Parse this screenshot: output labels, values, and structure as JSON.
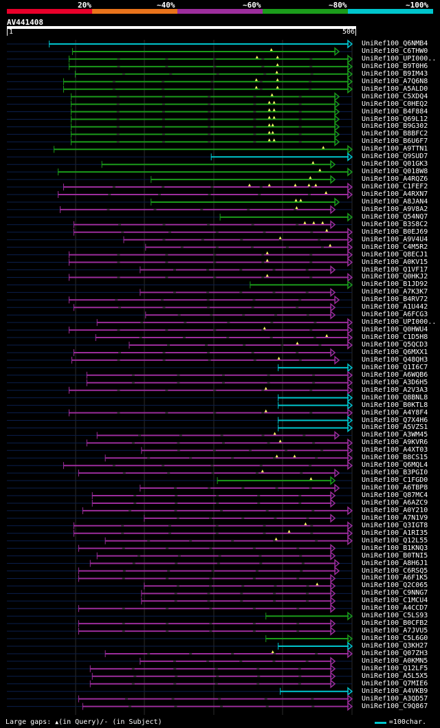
{
  "legend": {
    "labels": [
      "20%",
      "~40%",
      "~60%",
      "~80%",
      "~100%"
    ],
    "colors": [
      "#e8002a",
      "#e8731b",
      "#9c2d9c",
      "#1b9c1b",
      "#00c5cd"
    ]
  },
  "title": "AV441408",
  "ruler": {
    "start": "1",
    "end": "506"
  },
  "query_length": 506,
  "hits": [
    {
      "id": "UniRef100_Q6NMB4",
      "q": [
        63,
        506
      ],
      "c": "cyan",
      "s": 0,
      "t": []
    },
    {
      "id": "UniRef100_C6THW0",
      "q": [
        97,
        487
      ],
      "c": "green",
      "s": 0,
      "t": [
        388
      ]
    },
    {
      "id": "UniRef100_UPI000..",
      "q": [
        92,
        506
      ],
      "c": "green",
      "s": 1,
      "t": [
        367,
        397
      ]
    },
    {
      "id": "UniRef100_B9T0H6",
      "q": [
        92,
        506
      ],
      "c": "green",
      "s": 1,
      "t": [
        397
      ]
    },
    {
      "id": "UniRef100_B9IM43",
      "q": [
        101,
        506
      ],
      "c": "green",
      "s": 1,
      "t": [
        396
      ]
    },
    {
      "id": "UniRef100_A7Q6N8",
      "q": [
        84,
        506
      ],
      "c": "green",
      "s": 1,
      "t": [
        366,
        397
      ]
    },
    {
      "id": "UniRef100_A5ALD0",
      "q": [
        84,
        506
      ],
      "c": "green",
      "s": 1,
      "t": [
        366,
        397
      ]
    },
    {
      "id": "UniRef100_C5XDQ4",
      "q": [
        95,
        487
      ],
      "c": "green",
      "s": 1,
      "t": [
        389
      ]
    },
    {
      "id": "UniRef100_C0HEQ2",
      "q": [
        95,
        487
      ],
      "c": "green",
      "s": 1,
      "t": [
        385,
        392
      ]
    },
    {
      "id": "UniRef100_B4F884",
      "q": [
        95,
        487
      ],
      "c": "green",
      "s": 1,
      "t": [
        385,
        392
      ]
    },
    {
      "id": "UniRef100_Q69L12",
      "q": [
        95,
        487
      ],
      "c": "green",
      "s": 1,
      "t": [
        385,
        392
      ]
    },
    {
      "id": "UniRef100_B9G302",
      "q": [
        95,
        487
      ],
      "c": "green",
      "s": 1,
      "t": [
        385,
        390
      ]
    },
    {
      "id": "UniRef100_B8BFC2",
      "q": [
        95,
        487
      ],
      "c": "green",
      "s": 1,
      "t": [
        385,
        390
      ]
    },
    {
      "id": "UniRef100_B6U6F7",
      "q": [
        95,
        487
      ],
      "c": "green",
      "s": 1,
      "t": [
        385,
        392
      ]
    },
    {
      "id": "UniRef100_A9TTN1",
      "q": [
        70,
        506
      ],
      "c": "green",
      "s": 0,
      "t": [
        464
      ]
    },
    {
      "id": "UniRef100_Q9SUD7",
      "q": [
        300,
        506
      ],
      "c": "cyan",
      "s": 0,
      "t": []
    },
    {
      "id": "UniRef100_Q01GK3",
      "q": [
        140,
        481
      ],
      "c": "green",
      "s": 0,
      "t": [
        449
      ]
    },
    {
      "id": "UniRef100_Q018W8",
      "q": [
        76,
        506
      ],
      "c": "green",
      "s": 0,
      "t": [
        459
      ]
    },
    {
      "id": "UniRef100_A4RQZ6",
      "q": [
        212,
        481
      ],
      "c": "green",
      "s": 0,
      "t": [
        445
      ]
    },
    {
      "id": "UniRef100_C1FEF2",
      "q": [
        84,
        506
      ],
      "c": "purple",
      "s": 1,
      "t": [
        356,
        385,
        423,
        443,
        453
      ]
    },
    {
      "id": "UniRef100_A4RXN7",
      "q": [
        76,
        506
      ],
      "c": "purple",
      "s": 1,
      "t": [
        468
      ]
    },
    {
      "id": "UniRef100_A8JAN4",
      "q": [
        212,
        487
      ],
      "c": "green",
      "s": 0,
      "t": [
        424,
        431
      ]
    },
    {
      "id": "UniRef100_A9V8A2",
      "q": [
        79,
        481
      ],
      "c": "purple",
      "s": 1,
      "t": [
        425
      ]
    },
    {
      "id": "UniRef100_Q54NQ7",
      "q": [
        313,
        506
      ],
      "c": "green",
      "s": 0,
      "t": []
    },
    {
      "id": "UniRef100_B3S8C2",
      "q": [
        99,
        481
      ],
      "c": "purple",
      "s": 1,
      "t": [
        437,
        450,
        463
      ]
    },
    {
      "id": "UniRef100_B0EJ69",
      "q": [
        99,
        506
      ],
      "c": "purple",
      "s": 1,
      "t": [
        469
      ]
    },
    {
      "id": "UniRef100_A9V4U4",
      "q": [
        172,
        506
      ],
      "c": "purple",
      "s": 1,
      "t": [
        401
      ]
    },
    {
      "id": "UniRef100_C4M5R2",
      "q": [
        204,
        506
      ],
      "c": "purple",
      "s": 1,
      "t": [
        474
      ]
    },
    {
      "id": "UniRef100_Q8ECJ1",
      "q": [
        92,
        506
      ],
      "c": "purple",
      "s": 1,
      "t": [
        382
      ]
    },
    {
      "id": "UniRef100_A0KV15",
      "q": [
        92,
        506
      ],
      "c": "purple",
      "s": 1,
      "t": [
        382
      ]
    },
    {
      "id": "UniRef100_Q1VF17",
      "q": [
        196,
        481
      ],
      "c": "purple",
      "s": 1,
      "t": []
    },
    {
      "id": "UniRef100_Q0HKJ2",
      "q": [
        92,
        506
      ],
      "c": "purple",
      "s": 1,
      "t": [
        382
      ]
    },
    {
      "id": "UniRef100_B1JD92",
      "q": [
        357,
        506
      ],
      "c": "green",
      "s": 0,
      "t": []
    },
    {
      "id": "UniRef100_A7K3K7",
      "q": [
        196,
        481
      ],
      "c": "purple",
      "s": 1,
      "t": []
    },
    {
      "id": "UniRef100_B4RV72",
      "q": [
        92,
        487
      ],
      "c": "purple",
      "s": 1,
      "t": []
    },
    {
      "id": "UniRef100_A1U442",
      "q": [
        99,
        481
      ],
      "c": "purple",
      "s": 1,
      "t": []
    },
    {
      "id": "UniRef100_A6FCG3",
      "q": [
        204,
        481
      ],
      "c": "purple",
      "s": 1,
      "t": []
    },
    {
      "id": "UniRef100_UPI000..",
      "q": [
        133,
        506
      ],
      "c": "purple",
      "s": 1,
      "t": []
    },
    {
      "id": "UniRef100_Q0HWU4",
      "q": [
        92,
        506
      ],
      "c": "purple",
      "s": 1,
      "t": [
        378
      ]
    },
    {
      "id": "UniRef100_C1D5H8",
      "q": [
        131,
        506
      ],
      "c": "purple",
      "s": 1,
      "t": [
        469
      ]
    },
    {
      "id": "UniRef100_Q5QCD3",
      "q": [
        180,
        506
      ],
      "c": "purple",
      "s": 1,
      "t": [
        426
      ]
    },
    {
      "id": "UniRef100_Q6MXX1",
      "q": [
        99,
        481
      ],
      "c": "purple",
      "s": 1,
      "t": []
    },
    {
      "id": "UniRef100_Q48QH3",
      "q": [
        96,
        487
      ],
      "c": "purple",
      "s": 1,
      "t": [
        399
      ]
    },
    {
      "id": "UniRef100_Q1I6C7",
      "q": [
        398,
        506
      ],
      "c": "cyan",
      "s": 0,
      "t": []
    },
    {
      "id": "UniRef100_A6WQB6",
      "q": [
        118,
        506
      ],
      "c": "purple",
      "s": 1,
      "t": []
    },
    {
      "id": "UniRef100_A3D6H5",
      "q": [
        118,
        506
      ],
      "c": "purple",
      "s": 1,
      "t": []
    },
    {
      "id": "UniRef100_A2V3A3",
      "q": [
        92,
        506
      ],
      "c": "purple",
      "s": 1,
      "t": [
        380
      ]
    },
    {
      "id": "UniRef100_Q8BNL8",
      "q": [
        398,
        506
      ],
      "c": "cyan",
      "s": 0,
      "t": []
    },
    {
      "id": "UniRef100_B0KTL8",
      "q": [
        398,
        506
      ],
      "c": "cyan",
      "s": 0,
      "t": []
    },
    {
      "id": "UniRef100_A4Y8F4",
      "q": [
        92,
        506
      ],
      "c": "purple",
      "s": 1,
      "t": [
        380
      ]
    },
    {
      "id": "UniRef100_Q7X4H6",
      "q": [
        398,
        506
      ],
      "c": "cyan",
      "s": 0,
      "t": []
    },
    {
      "id": "UniRef100_A5VZS1",
      "q": [
        398,
        506
      ],
      "c": "cyan",
      "s": 0,
      "t": []
    },
    {
      "id": "UniRef100_A3WM45",
      "q": [
        133,
        487
      ],
      "c": "purple",
      "s": 1,
      "t": [
        393
      ]
    },
    {
      "id": "UniRef100_A9KVR6",
      "q": [
        118,
        506
      ],
      "c": "purple",
      "s": 1,
      "t": [
        401
      ]
    },
    {
      "id": "UniRef100_A4XT03",
      "q": [
        198,
        506
      ],
      "c": "purple",
      "s": 1,
      "t": []
    },
    {
      "id": "UniRef100_B8CS15",
      "q": [
        145,
        506
      ],
      "c": "purple",
      "s": 1,
      "t": [
        396,
        422
      ]
    },
    {
      "id": "UniRef100_Q6MQL4",
      "q": [
        84,
        506
      ],
      "c": "purple",
      "s": 1,
      "t": []
    },
    {
      "id": "UniRef100_B3PGI0",
      "q": [
        106,
        487
      ],
      "c": "purple",
      "s": 1,
      "t": [
        375
      ]
    },
    {
      "id": "UniRef100_C1FGD0",
      "q": [
        309,
        481
      ],
      "c": "green",
      "s": 0,
      "t": [
        446
      ]
    },
    {
      "id": "UniRef100_A6TBP8",
      "q": [
        196,
        487
      ],
      "c": "purple",
      "s": 1,
      "t": []
    },
    {
      "id": "UniRef100_Q87MC4",
      "q": [
        126,
        481
      ],
      "c": "purple",
      "s": 1,
      "t": []
    },
    {
      "id": "UniRef100_A6AZC9",
      "q": [
        126,
        481
      ],
      "c": "purple",
      "s": 1,
      "t": []
    },
    {
      "id": "UniRef100_A0Y210",
      "q": [
        112,
        506
      ],
      "c": "purple",
      "s": 1,
      "t": []
    },
    {
      "id": "UniRef100_A7N1V9",
      "q": [
        202,
        481
      ],
      "c": "purple",
      "s": 1,
      "t": []
    },
    {
      "id": "UniRef100_Q3IGT8",
      "q": [
        99,
        506
      ],
      "c": "purple",
      "s": 1,
      "t": [
        438
      ]
    },
    {
      "id": "UniRef100_A1RI35",
      "q": [
        99,
        506
      ],
      "c": "purple",
      "s": 1,
      "t": [
        414
      ]
    },
    {
      "id": "UniRef100_Q12L55",
      "q": [
        145,
        506
      ],
      "c": "purple",
      "s": 1,
      "t": [
        395
      ]
    },
    {
      "id": "UniRef100_B1KNQ3",
      "q": [
        106,
        481
      ],
      "c": "purple",
      "s": 1,
      "t": []
    },
    {
      "id": "UniRef100_B0TNI5",
      "q": [
        133,
        481
      ],
      "c": "purple",
      "s": 1,
      "t": []
    },
    {
      "id": "UniRef100_A8H6J1",
      "q": [
        123,
        487
      ],
      "c": "purple",
      "s": 1,
      "t": []
    },
    {
      "id": "UniRef100_C6RSQ5",
      "q": [
        106,
        487
      ],
      "c": "purple",
      "s": 1,
      "t": []
    },
    {
      "id": "UniRef100_A6F1K5",
      "q": [
        106,
        481
      ],
      "c": "purple",
      "s": 1,
      "t": []
    },
    {
      "id": "UniRef100_Q2C065",
      "q": [
        202,
        481
      ],
      "c": "purple",
      "s": 1,
      "t": [
        455
      ]
    },
    {
      "id": "UniRef100_C9NNG7",
      "q": [
        198,
        481
      ],
      "c": "purple",
      "s": 1,
      "t": []
    },
    {
      "id": "UniRef100_C1MCU4",
      "q": [
        198,
        481
      ],
      "c": "purple",
      "s": 1,
      "t": []
    },
    {
      "id": "UniRef100_A4CCD7",
      "q": [
        106,
        481
      ],
      "c": "purple",
      "s": 1,
      "t": []
    },
    {
      "id": "UniRef100_C5LS93",
      "q": [
        380,
        506
      ],
      "c": "green",
      "s": 0,
      "t": []
    },
    {
      "id": "UniRef100_B0CFB2",
      "q": [
        106,
        481
      ],
      "c": "purple",
      "s": 1,
      "t": []
    },
    {
      "id": "UniRef100_A7JVU5",
      "q": [
        106,
        481
      ],
      "c": "purple",
      "s": 1,
      "t": []
    },
    {
      "id": "UniRef100_C5L6G0",
      "q": [
        380,
        506
      ],
      "c": "green",
      "s": 0,
      "t": []
    },
    {
      "id": "UniRef100_Q3KH27",
      "q": [
        398,
        506
      ],
      "c": "cyan",
      "s": 0,
      "t": []
    },
    {
      "id": "UniRef100_Q07ZH3",
      "q": [
        145,
        506
      ],
      "c": "purple",
      "s": 1,
      "t": [
        390
      ]
    },
    {
      "id": "UniRef100_A0KMN5",
      "q": [
        196,
        481
      ],
      "c": "purple",
      "s": 1,
      "t": []
    },
    {
      "id": "UniRef100_Q12LF5",
      "q": [
        123,
        481
      ],
      "c": "purple",
      "s": 1,
      "t": []
    },
    {
      "id": "UniRef100_A5L5X5",
      "q": [
        126,
        481
      ],
      "c": "purple",
      "s": 1,
      "t": []
    },
    {
      "id": "UniRef100_Q7MIE6",
      "q": [
        123,
        481
      ],
      "c": "purple",
      "s": 1,
      "t": []
    },
    {
      "id": "UniRef100_A4VKB9",
      "q": [
        401,
        506
      ],
      "c": "cyan",
      "s": 0,
      "t": []
    },
    {
      "id": "UniRef100_A3QD57",
      "q": [
        106,
        506
      ],
      "c": "purple",
      "s": 1,
      "t": []
    },
    {
      "id": "UniRef100_C9Q867",
      "q": [
        112,
        506
      ],
      "c": "purple",
      "s": 1,
      "t": []
    }
  ],
  "footer": {
    "gaps_prefix": "Large gaps: ",
    "gaps_marker": "▲",
    "gaps_query": "(in Query)/-",
    "gaps_subject": " (in Subject)",
    "scale_label": "=100char."
  }
}
